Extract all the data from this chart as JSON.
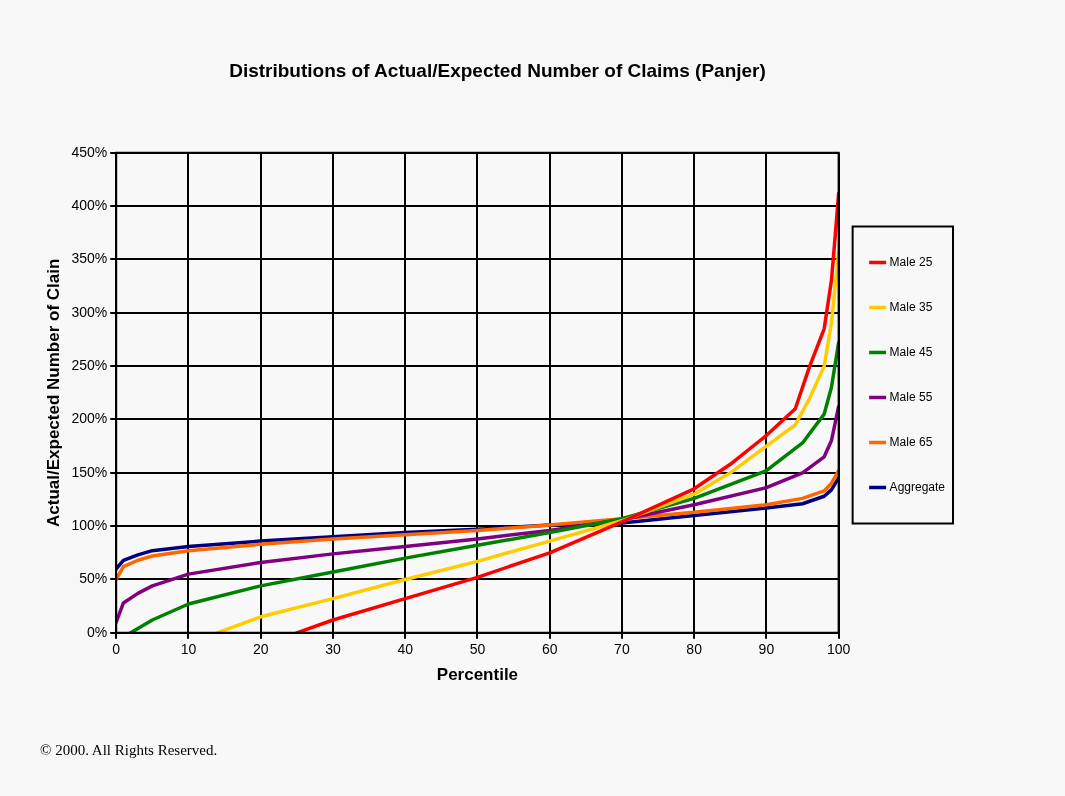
{
  "chart_data": {
    "type": "line",
    "title": "Distributions of Actual/Expected Number of Claims (Panjer)",
    "xlabel": "Percentile",
    "ylabel": "Actual/Expected Number of Clain",
    "xlim": [
      0,
      100
    ],
    "xticks": [
      0,
      10,
      20,
      30,
      40,
      50,
      60,
      70,
      80,
      90,
      100
    ],
    "ylim": [
      0,
      450
    ],
    "yticks": [
      {
        "value": 0,
        "label": "0%"
      },
      {
        "value": 50,
        "label": "50%"
      },
      {
        "value": 100,
        "label": "100%"
      },
      {
        "value": 150,
        "label": "150%"
      },
      {
        "value": 200,
        "label": "200%"
      },
      {
        "value": 250,
        "label": "250%"
      },
      {
        "value": 300,
        "label": "300%"
      },
      {
        "value": 350,
        "label": "350%"
      },
      {
        "value": 400,
        "label": "400%"
      },
      {
        "value": 450,
        "label": "450%"
      }
    ],
    "grid": true,
    "legend": "right",
    "marker": "none",
    "line_style": "solid",
    "series": [
      {
        "name": "Male 25",
        "color": "#ff0000",
        "x": [
          25,
          30,
          40,
          50,
          60,
          70,
          80,
          85,
          90,
          94,
          96,
          98,
          99,
          99.5,
          100
        ],
        "values": [
          0,
          12,
          32,
          52,
          75,
          104,
          135,
          158,
          185,
          210,
          250,
          285,
          330,
          370,
          412
        ]
      },
      {
        "name": "Male 35",
        "color": "#ffcc00",
        "x": [
          14,
          20,
          30,
          40,
          50,
          60,
          70,
          80,
          85,
          90,
          94,
          96,
          98,
          99,
          100
        ],
        "values": [
          0,
          15,
          32,
          50,
          67,
          86,
          105,
          130,
          150,
          175,
          195,
          220,
          250,
          290,
          357
        ]
      },
      {
        "name": "Male 45",
        "color": "#008000",
        "x": [
          2,
          5,
          10,
          20,
          30,
          40,
          50,
          60,
          70,
          80,
          90,
          95,
          98,
          99,
          100
        ],
        "values": [
          0,
          12,
          27,
          44,
          57,
          70,
          82,
          94,
          107,
          126,
          152,
          178,
          205,
          230,
          272
        ]
      },
      {
        "name": "Male 55",
        "color": "#800080",
        "x": [
          0,
          1,
          3,
          5,
          10,
          20,
          30,
          40,
          50,
          60,
          70,
          80,
          90,
          95,
          98,
          99,
          100
        ],
        "values": [
          10,
          28,
          37,
          44,
          55,
          66,
          74,
          81,
          88,
          96,
          106,
          120,
          136,
          150,
          165,
          180,
          212
        ]
      },
      {
        "name": "Male 65",
        "color": "#ff6600",
        "x": [
          0,
          1,
          3,
          5,
          10,
          20,
          30,
          40,
          50,
          60,
          70,
          80,
          90,
          95,
          98,
          99,
          100
        ],
        "values": [
          50,
          62,
          68,
          72,
          77,
          83,
          88,
          92,
          96,
          101,
          107,
          113,
          120,
          126,
          133,
          140,
          152
        ]
      },
      {
        "name": "Aggregate",
        "color": "#000080",
        "x": [
          0,
          1,
          3,
          5,
          10,
          20,
          30,
          40,
          50,
          60,
          70,
          80,
          90,
          95,
          98,
          99,
          100
        ],
        "values": [
          60,
          68,
          73,
          77,
          81,
          86,
          90,
          94,
          97,
          101,
          103,
          110,
          117,
          121,
          128,
          134,
          145
        ]
      }
    ],
    "annotations": [
      "© 2000. All Rights Reserved."
    ]
  }
}
